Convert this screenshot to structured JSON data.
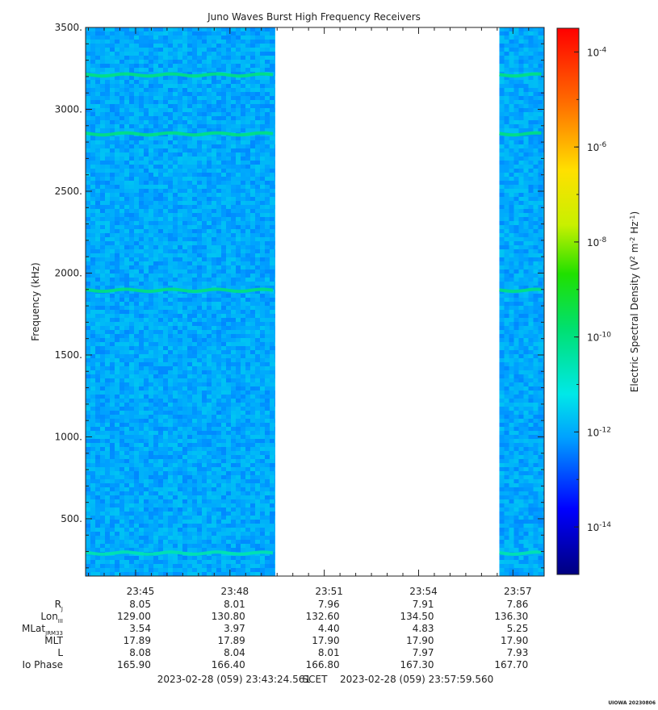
{
  "chart_data": {
    "type": "heatmap",
    "title": "Juno Waves Burst High Frequency Receivers",
    "ylabel": "Frequency (kHz)",
    "ylim": [
      150,
      3500
    ],
    "yticks": [
      500,
      1000,
      1500,
      2000,
      2500,
      3000,
      3500
    ],
    "ytick_labels": [
      "500.",
      "1000.",
      "1500.",
      "2000.",
      "2500.",
      "3000.",
      "3500."
    ],
    "xlim": [
      "23:43:24.561",
      "23:57:59.560"
    ],
    "xtick_labels": [
      "23:45",
      "23:48",
      "23:51",
      "23:54",
      "23:57"
    ],
    "data_gaps": [
      [
        "23:49:26",
        "23:56:34"
      ]
    ],
    "background_level_V2m2Hz": 1e-12,
    "emission_lines": [
      {
        "freq_kHz": 3210,
        "level_V2m2Hz": 1e-10
      },
      {
        "freq_kHz": 2850,
        "level_V2m2Hz": 1e-10
      },
      {
        "freq_kHz": 1895,
        "level_V2m2Hz": 1e-10
      },
      {
        "freq_kHz": 290,
        "level_V2m2Hz": 3e-11
      }
    ],
    "colorbar": {
      "label": "Electric Spectral Density (V² m⁻² Hz⁻¹)",
      "scale": "log",
      "range_exp": [
        -15,
        -3.5
      ],
      "ticks": [
        {
          "exp": -4,
          "label": "10-4"
        },
        {
          "exp": -6,
          "label": "10-6"
        },
        {
          "exp": -8,
          "label": "10-8"
        },
        {
          "exp": -10,
          "label": "10-10"
        },
        {
          "exp": -12,
          "label": "10-12"
        },
        {
          "exp": -14,
          "label": "10-14"
        }
      ]
    },
    "ephemeris": {
      "rows": [
        {
          "label": "RJ",
          "values": [
            "8.05",
            "8.01",
            "7.96",
            "7.91",
            "7.86"
          ]
        },
        {
          "label": "LonIII",
          "values": [
            "129.00",
            "130.80",
            "132.60",
            "134.50",
            "136.30"
          ]
        },
        {
          "label": "MLatJRM33",
          "values": [
            "3.54",
            "3.97",
            "4.40",
            "4.83",
            "5.25"
          ]
        },
        {
          "label": "MLT",
          "values": [
            "17.89",
            "17.89",
            "17.90",
            "17.90",
            "17.90"
          ]
        },
        {
          "label": "L",
          "values": [
            "8.08",
            "8.04",
            "8.01",
            "7.97",
            "7.93"
          ]
        },
        {
          "label": "Io Phase",
          "values": [
            "165.90",
            "166.40",
            "166.80",
            "167.30",
            "167.70"
          ]
        }
      ]
    },
    "time_range_label": {
      "start": "2023-02-28 (059) 23:43:24.561",
      "mid": "SCET",
      "end": "2023-02-28 (059) 23:57:59.560"
    },
    "credit": "UIOWA 20230806"
  }
}
